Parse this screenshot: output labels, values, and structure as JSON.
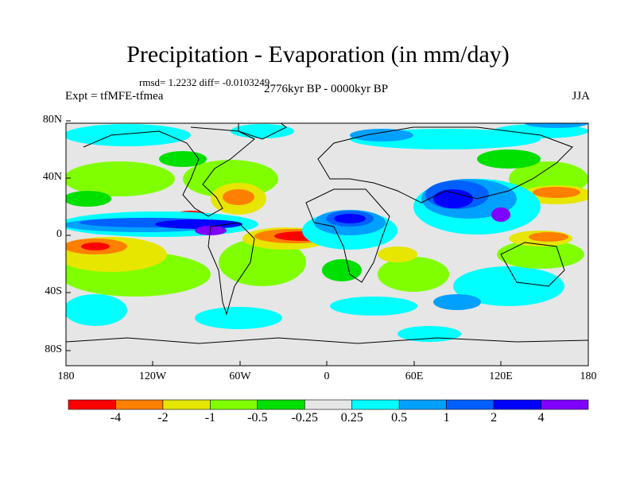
{
  "title": "Precipitation - Evaporation (in mm/day)",
  "stats_line": "rmsd= 1.2232 diff= -0.0103249",
  "experiment": "Expt = tfMFE-tfmea",
  "period": "2776kyr BP - 0000kyr BP",
  "season": "JJA",
  "lat_ticks": [
    "80N",
    "40N",
    "0",
    "40S",
    "80S"
  ],
  "lon_ticks": [
    "180",
    "120W",
    "60W",
    "0",
    "60E",
    "120E",
    "180"
  ],
  "colorbar": {
    "colors": [
      "#ff0000",
      "#ff7f00",
      "#e6e600",
      "#80ff00",
      "#00e000",
      "#e6e6e6",
      "#00ffff",
      "#00a0ff",
      "#0060ff",
      "#0000ff",
      "#8000ff"
    ],
    "labels": [
      "-4",
      "-2",
      "-1",
      "-0.5",
      "-0.25",
      "0.25",
      "0.5",
      "1",
      "2",
      "4"
    ]
  }
}
